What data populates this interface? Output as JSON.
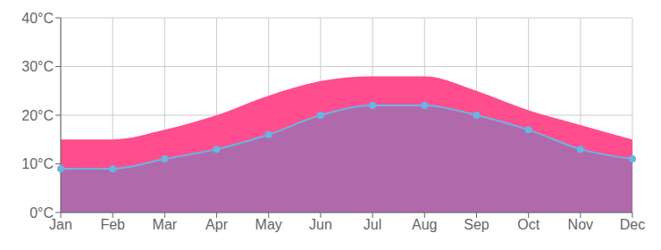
{
  "chart_data": {
    "type": "area",
    "categories": [
      "Jan",
      "Feb",
      "Mar",
      "Apr",
      "May",
      "Jun",
      "Jul",
      "Aug",
      "Sep",
      "Oct",
      "Nov",
      "Dec"
    ],
    "series": [
      {
        "type": "area",
        "color": "#b06aab",
        "values": [
          9,
          9,
          11,
          13,
          16,
          20,
          22,
          22,
          20,
          17,
          13,
          11
        ]
      },
      {
        "type": "area",
        "color": "#ff4d8d",
        "values": [
          15,
          15,
          17,
          20,
          24,
          27,
          28,
          28,
          25,
          21,
          18,
          15
        ]
      },
      {
        "type": "line",
        "color": "#6ab4e0",
        "marker": "circle",
        "values": [
          9,
          9,
          11,
          13,
          16,
          20,
          22,
          22,
          20,
          17,
          13,
          11
        ]
      }
    ],
    "ylim": [
      0,
      40
    ],
    "yticks": [
      {
        "value": 0,
        "label": "0°C"
      },
      {
        "value": 10,
        "label": "10°C"
      },
      {
        "value": 20,
        "label": "20°C"
      },
      {
        "value": 30,
        "label": "30°C"
      },
      {
        "value": 40,
        "label": "40°C"
      }
    ],
    "grid": true
  }
}
